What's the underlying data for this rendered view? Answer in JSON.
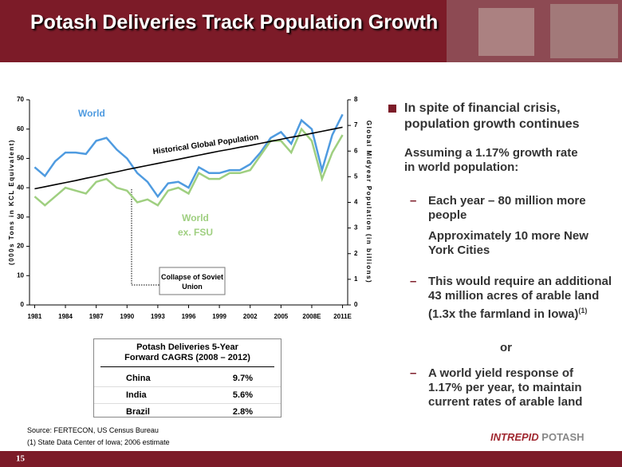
{
  "slide": {
    "title": "Potash Deliveries Track Population Growth",
    "page_number": "15",
    "logo": {
      "first": "INTREPID",
      "second": "POTASH"
    },
    "bullets": {
      "main": "In spite of financial crisis, population growth continues",
      "sub": "Assuming a 1.17% growth rate in world population:",
      "items": [
        "Each year – 80 million more people",
        "Approximately 10 more New York Cities",
        "This would require an additional 43 million acres of arable land (1.3x the farmland in Iowa)",
        "or",
        "A world yield response of 1.17% per year, to maintain current rates of arable land"
      ],
      "footnote_mark": "(1)"
    },
    "table": {
      "title": "Potash Deliveries  5-Year Forward CAGRS (2008 – 2012)",
      "rows": [
        [
          "China",
          "9.7%"
        ],
        [
          "India",
          "5.6%"
        ],
        [
          "Brazil",
          "2.8%"
        ]
      ]
    },
    "sources": [
      "Source:  FERTECON, US Census Bureau",
      "(1) State Data Center of Iowa; 2006 estimate"
    ]
  },
  "chart_data": {
    "type": "line",
    "ylabel": "(000s Tons in KCL Equivalent)",
    "y2label": "Global Midyear Population (in billions)",
    "annotations": [
      "Historical Global Population",
      "Collapse of Soviet Union"
    ],
    "x": [
      1981,
      1982,
      1983,
      1984,
      1985,
      1986,
      1987,
      1988,
      1989,
      1990,
      1991,
      1992,
      1993,
      1994,
      1995,
      1996,
      1997,
      1998,
      1999,
      2000,
      2001,
      2002,
      2003,
      2004,
      2005,
      2006,
      2007,
      2008,
      2009,
      2010,
      2011
    ],
    "xlim": [
      1980.5,
      2011.5
    ],
    "xticks": [
      1981,
      1984,
      1987,
      1990,
      1993,
      1996,
      1999,
      2002,
      2005,
      {
        "value": 2008,
        "label": "2008E"
      },
      {
        "value": 2011,
        "label": "2011E"
      }
    ],
    "ylim": [
      0,
      70
    ],
    "yticks": [
      0,
      10,
      20,
      30,
      40,
      50,
      60,
      70
    ],
    "y2lim": [
      0,
      8
    ],
    "y2ticks": [
      0,
      1,
      2,
      3,
      4,
      5,
      6,
      7,
      8
    ],
    "grid": false,
    "series": [
      {
        "name": "World",
        "color": "#4f9be0",
        "values": [
          47,
          44,
          49,
          52,
          52,
          51.5,
          56,
          57,
          53,
          50,
          45,
          42,
          37,
          41.5,
          42,
          40,
          47,
          45,
          45,
          46,
          46,
          48,
          52,
          57,
          59,
          55,
          63,
          60,
          46,
          58,
          65
        ]
      },
      {
        "name": "World ex. FSU",
        "color": "#9fcf80",
        "values": [
          37,
          34,
          37,
          40,
          39,
          38,
          42,
          43,
          40,
          39,
          35,
          36,
          34,
          39,
          40,
          38,
          45,
          43,
          43,
          45,
          45,
          46,
          51,
          56,
          56,
          52,
          60,
          56,
          43,
          52,
          58
        ]
      },
      {
        "name": "Historical Global Population",
        "color": "#000000",
        "axis": "y2",
        "values": [
          4.53,
          4.61,
          4.69,
          4.77,
          4.85,
          4.94,
          5.02,
          5.11,
          5.19,
          5.28,
          5.36,
          5.44,
          5.52,
          5.6,
          5.68,
          5.76,
          5.84,
          5.92,
          6.0,
          6.07,
          6.15,
          6.22,
          6.3,
          6.38,
          6.46,
          6.54,
          6.61,
          6.69,
          6.77,
          6.85,
          6.93
        ]
      }
    ]
  }
}
